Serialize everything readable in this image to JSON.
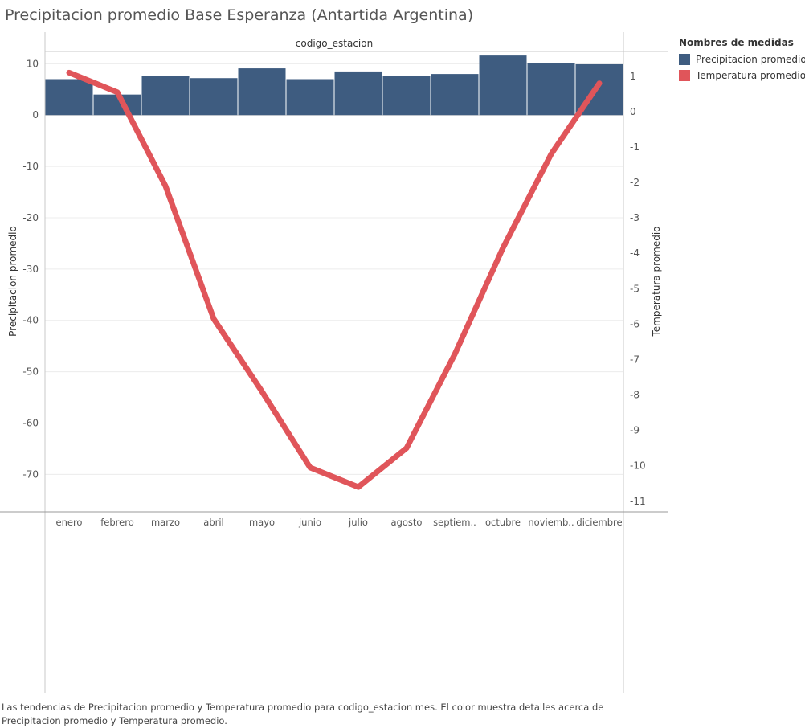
{
  "title": "Precipitacion promedio Base Esperanza (Antartida Argentina)",
  "caption": "Las tendencias de Precipitacion promedio y Temperatura promedio para codigo_estacion mes.  El color muestra detalles acerca de Precipitacion promedio y Temperatura promedio.",
  "legend": {
    "title": "Nombres de medidas",
    "items": [
      {
        "label": "Precipitacion promedio",
        "color": "#3e5c80"
      },
      {
        "label": "Temperatura promedio",
        "color": "#e0555a"
      }
    ]
  },
  "chart_data": {
    "type": "bar+line",
    "header": "codigo_estacion",
    "categories": [
      "enero",
      "febrero",
      "marzo",
      "abril",
      "mayo",
      "junio",
      "julio",
      "agosto",
      "septiem..",
      "octubre",
      "noviemb..",
      "diciembre"
    ],
    "series": [
      {
        "name": "Precipitacion promedio",
        "type": "bar",
        "axis": "left",
        "color": "#3e5c80",
        "values": [
          7.0,
          4.0,
          7.7,
          7.2,
          9.1,
          7.0,
          8.5,
          7.7,
          8.0,
          11.6,
          10.1,
          9.9
        ]
      },
      {
        "name": "Temperatura promedio",
        "type": "line",
        "axis": "right",
        "color": "#e0555a",
        "values": [
          1.1,
          0.55,
          -2.1,
          -5.85,
          -7.9,
          -10.05,
          -10.6,
          -9.5,
          -6.85,
          -3.85,
          -1.2,
          0.8
        ]
      }
    ],
    "ylabel": "Precipitacion promedio",
    "ylabel_right": "Temperatura promedio",
    "ylim": [
      -77.3,
      12.4
    ],
    "ylim_right": [
      -11.3,
      1.7
    ],
    "yticks": [
      10,
      0,
      -10,
      -20,
      -30,
      -40,
      -50,
      -60,
      -70
    ],
    "yticks_right": [
      1,
      0,
      -1,
      -2,
      -3,
      -4,
      -5,
      -6,
      -7,
      -8,
      -9,
      -10,
      -11
    ],
    "grid": true
  }
}
